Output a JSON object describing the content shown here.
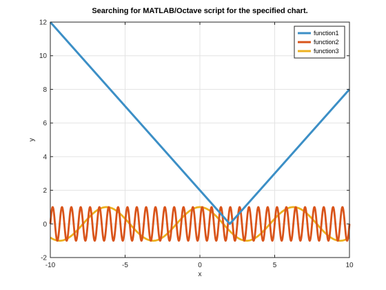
{
  "chart_data": {
    "type": "line",
    "title": "Searching for MATLAB/Octave script for the specified chart.",
    "xlabel": "x",
    "ylabel": "y",
    "xlim": [
      -10,
      10
    ],
    "ylim": [
      -2,
      12
    ],
    "xticks": [
      -10,
      -5,
      0,
      5,
      10
    ],
    "yticks": [
      -2,
      0,
      2,
      4,
      6,
      8,
      10,
      12
    ],
    "xtick_labels": [
      "-10",
      "-5",
      "0",
      "5",
      "10"
    ],
    "ytick_labels": [
      "-2",
      "0",
      "2",
      "4",
      "6",
      "8",
      "10",
      "12"
    ],
    "grid": true,
    "legend_position": "top-right",
    "series": [
      {
        "name": "function1",
        "color": "#3c8fc6",
        "x": [
          -10,
          2,
          10
        ],
        "y": [
          12,
          0,
          8
        ]
      },
      {
        "name": "function2",
        "color": "#d9541a",
        "x": [
          -10,
          10
        ],
        "y": [
          -1,
          1
        ],
        "shape": "sin(10*x)",
        "amplitude": 1,
        "cycles": 32
      },
      {
        "name": "function3",
        "color": "#ecb01f",
        "x": [
          -10,
          10
        ],
        "y": [
          -1,
          1
        ],
        "shape": "cos(x)",
        "amplitude": 1,
        "cycles": 3.2
      }
    ]
  }
}
